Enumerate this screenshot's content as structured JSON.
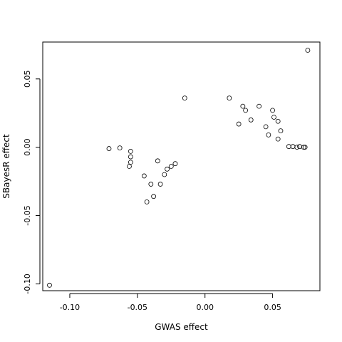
{
  "chart_data": {
    "type": "scatter",
    "title": "",
    "xlabel": "GWAS effect",
    "ylabel": "SBayesR effect",
    "xlim": [
      -0.12,
      0.085
    ],
    "ylim": [
      -0.105,
      0.077
    ],
    "x_ticks": [
      -0.1,
      -0.05,
      0.0,
      0.05
    ],
    "x_tick_labels": [
      "-0.10",
      "-0.05",
      "0.00",
      "0.05"
    ],
    "y_ticks": [
      -0.1,
      -0.05,
      0.0,
      0.05
    ],
    "y_tick_labels": [
      "-0.10",
      "-0.05",
      "0.00",
      "0.05"
    ],
    "grid": false,
    "legend": "none",
    "marker": "open-circle",
    "series": [
      {
        "values": [
          {
            "x": -0.115,
            "y": -0.101
          },
          {
            "x": 0.076,
            "y": 0.071
          },
          {
            "x": -0.071,
            "y": -0.001
          },
          {
            "x": -0.063,
            "y": -0.0005
          },
          {
            "x": -0.055,
            "y": -0.003
          },
          {
            "x": -0.055,
            "y": -0.007
          },
          {
            "x": -0.055,
            "y": -0.011
          },
          {
            "x": -0.056,
            "y": -0.014
          },
          {
            "x": -0.045,
            "y": -0.021
          },
          {
            "x": -0.043,
            "y": -0.04
          },
          {
            "x": -0.038,
            "y": -0.036
          },
          {
            "x": -0.04,
            "y": -0.027
          },
          {
            "x": -0.033,
            "y": -0.027
          },
          {
            "x": -0.03,
            "y": -0.02
          },
          {
            "x": -0.028,
            "y": -0.016
          },
          {
            "x": -0.025,
            "y": -0.014
          },
          {
            "x": -0.022,
            "y": -0.012
          },
          {
            "x": -0.035,
            "y": -0.01
          },
          {
            "x": -0.015,
            "y": 0.036
          },
          {
            "x": 0.018,
            "y": 0.036
          },
          {
            "x": 0.028,
            "y": 0.03
          },
          {
            "x": 0.03,
            "y": 0.027
          },
          {
            "x": 0.04,
            "y": 0.03
          },
          {
            "x": 0.05,
            "y": 0.027
          },
          {
            "x": 0.051,
            "y": 0.022
          },
          {
            "x": 0.054,
            "y": 0.019
          },
          {
            "x": 0.034,
            "y": 0.02
          },
          {
            "x": 0.025,
            "y": 0.017
          },
          {
            "x": 0.045,
            "y": 0.015
          },
          {
            "x": 0.056,
            "y": 0.012
          },
          {
            "x": 0.047,
            "y": 0.009
          },
          {
            "x": 0.054,
            "y": 0.006
          },
          {
            "x": 0.062,
            "y": 0.0005
          },
          {
            "x": 0.065,
            "y": 0.0005
          },
          {
            "x": 0.068,
            "y": 0.0
          },
          {
            "x": 0.07,
            "y": 0.0005
          },
          {
            "x": 0.073,
            "y": 0.0
          },
          {
            "x": 0.074,
            "y": 0.0
          }
        ]
      }
    ]
  }
}
